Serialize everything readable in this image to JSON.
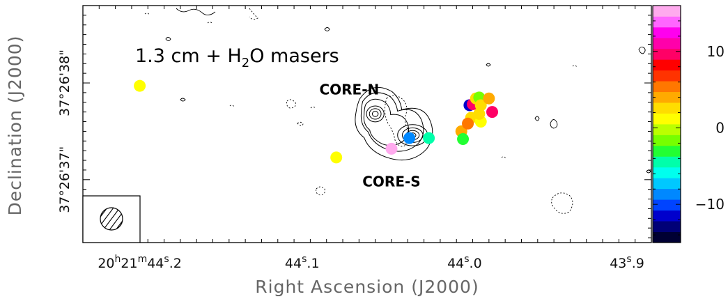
{
  "chart_data": {
    "type": "scatter",
    "title": "1.3 cm + H2O masers",
    "title_parts": {
      "prefix": "1.3 cm + H",
      "sub": "2",
      "suffix": "O masers"
    },
    "xlabel": "Right Ascension (J2000)",
    "ylabel": "Declination (J2000)",
    "x_ticks": [
      {
        "value": 44.2,
        "label_parts": [
          "20",
          "h",
          "21",
          "m",
          "44",
          "s",
          ".2"
        ]
      },
      {
        "value": 44.1,
        "label_parts": [
          "",
          "",
          "",
          "",
          "44",
          "s",
          ".1"
        ]
      },
      {
        "value": 44.0,
        "label_parts": [
          "",
          "",
          "",
          "",
          "44",
          "s",
          ".0"
        ]
      },
      {
        "value": 43.9,
        "label_parts": [
          "",
          "",
          "",
          "",
          "43",
          "s",
          ".9"
        ]
      }
    ],
    "y_ticks": [
      {
        "value": 38,
        "label": "37°26'38\""
      },
      {
        "value": 37,
        "label": "37°26'37\""
      }
    ],
    "xlim": [
      44.235,
      43.885
    ],
    "ylim": [
      36.35,
      38.8
    ],
    "grid": false,
    "sources": [
      {
        "name": "CORE-N",
        "label_x": 44.071,
        "label_y": 37.88
      },
      {
        "name": "CORE-S",
        "label_x": 44.045,
        "label_y": 36.93
      }
    ],
    "contours": {
      "core_n_center": [
        44.055,
        37.68
      ],
      "core_s_center": [
        44.032,
        37.46
      ],
      "levels": 6
    },
    "masers": [
      {
        "x": 44.2,
        "y": 37.97,
        "v": 1
      },
      {
        "x": 44.079,
        "y": 37.23,
        "v": 1
      },
      {
        "x": 44.045,
        "y": 37.32,
        "v": 15
      },
      {
        "x": 44.034,
        "y": 37.43,
        "v": -8
      },
      {
        "x": 44.022,
        "y": 37.43,
        "v": -5
      },
      {
        "x": 44.002,
        "y": 37.5,
        "v": 4
      },
      {
        "x": 44.001,
        "y": 37.42,
        "v": -3
      },
      {
        "x": 43.997,
        "y": 37.77,
        "v": -11
      },
      {
        "x": 43.995,
        "y": 37.78,
        "v": 9
      },
      {
        "x": 43.993,
        "y": 37.84,
        "v": 3
      },
      {
        "x": 43.991,
        "y": 37.85,
        "v": -2
      },
      {
        "x": 43.99,
        "y": 37.77,
        "v": 2
      },
      {
        "x": 43.996,
        "y": 37.64,
        "v": 3
      },
      {
        "x": 43.998,
        "y": 37.58,
        "v": 6
      },
      {
        "x": 43.99,
        "y": 37.6,
        "v": 1
      },
      {
        "x": 43.991,
        "y": 37.68,
        "v": 2
      },
      {
        "x": 43.985,
        "y": 37.84,
        "v": 4
      },
      {
        "x": 43.983,
        "y": 37.7,
        "v": 10
      }
    ],
    "colorbar": {
      "vmin": -15,
      "vmax": 16,
      "ticks": [
        10,
        0,
        -10
      ],
      "tick_labels": [
        "10",
        "0",
        "−10"
      ],
      "colors": [
        "#000033",
        "#000077",
        "#0000cc",
        "#0044ff",
        "#0088ff",
        "#00c8ff",
        "#00ffee",
        "#00ffaa",
        "#22ff33",
        "#77ff00",
        "#bbff00",
        "#ffff00",
        "#ffdd00",
        "#ffaa00",
        "#ff7700",
        "#ff3300",
        "#ff0000",
        "#ff0066",
        "#ff00aa",
        "#ff00ee",
        "#ff66ff",
        "#ffaaee"
      ]
    },
    "beam": {
      "label": "beam"
    }
  }
}
